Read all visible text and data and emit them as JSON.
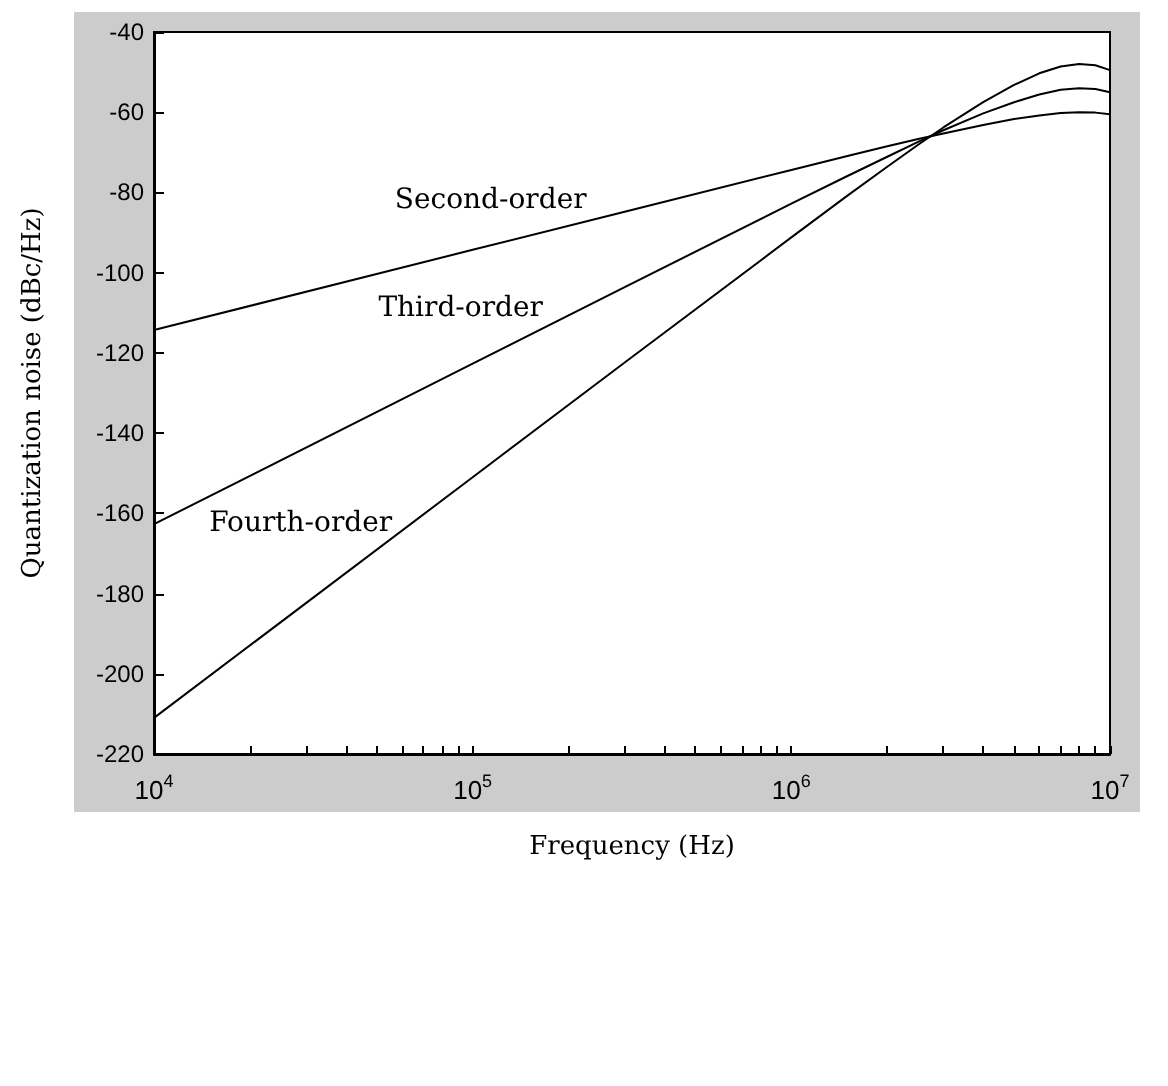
{
  "chart_data": {
    "type": "line",
    "xlabel": "Frequency (Hz)",
    "ylabel": "Quantization noise (dBc/Hz)",
    "log": "x",
    "xlim": [
      10000,
      10000000
    ],
    "ylim": [
      -220,
      -40
    ],
    "xticks": [
      {
        "value": 10000,
        "label": "10$^{4}$"
      },
      {
        "value": 20000,
        "label": null
      },
      {
        "value": 30000,
        "label": null
      },
      {
        "value": 40000,
        "label": null
      },
      {
        "value": 50000,
        "label": null
      },
      {
        "value": 60000,
        "label": null
      },
      {
        "value": 70000,
        "label": null
      },
      {
        "value": 80000,
        "label": null
      },
      {
        "value": 90000,
        "label": null
      },
      {
        "value": 100000,
        "label": "10$^{5}$"
      },
      {
        "value": 200000,
        "label": null
      },
      {
        "value": 300000,
        "label": null
      },
      {
        "value": 400000,
        "label": null
      },
      {
        "value": 500000,
        "label": null
      },
      {
        "value": 600000,
        "label": null
      },
      {
        "value": 700000,
        "label": null
      },
      {
        "value": 800000,
        "label": null
      },
      {
        "value": 900000,
        "label": null
      },
      {
        "value": 1000000,
        "label": "10$^{6}$"
      },
      {
        "value": 2000000,
        "label": null
      },
      {
        "value": 3000000,
        "label": null
      },
      {
        "value": 4000000,
        "label": null
      },
      {
        "value": 5000000,
        "label": null
      },
      {
        "value": 6000000,
        "label": null
      },
      {
        "value": 7000000,
        "label": null
      },
      {
        "value": 8000000,
        "label": null
      },
      {
        "value": 9000000,
        "label": null
      },
      {
        "value": 10000000,
        "label": "10$^{7}$"
      }
    ],
    "yticks": [
      -220,
      -200,
      -180,
      -160,
      -140,
      -120,
      -100,
      -80,
      -60,
      -40
    ],
    "grid": false,
    "legend": false,
    "marker": "none",
    "line_style": "solid",
    "x": [
      10000,
      100000,
      300000,
      1000000,
      1500000,
      2000000,
      2500000,
      3000000,
      4000000,
      5000000,
      6000000,
      7000000,
      8000000,
      9000000,
      10000000
    ],
    "series": [
      {
        "name": "Second-order",
        "color": "#000000",
        "values": [
          -114.3,
          -94.3,
          -84.8,
          -74.4,
          -70.9,
          -68.5,
          -66.7,
          -65.3,
          -63.2,
          -61.7,
          -60.8,
          -60.2,
          -60.0,
          -60.1,
          -60.5
        ]
      },
      {
        "name": "Third-order",
        "color": "#000000",
        "values": [
          -162.7,
          -122.7,
          -103.6,
          -82.8,
          -75.9,
          -71.1,
          -67.4,
          -64.5,
          -60.3,
          -57.5,
          -55.6,
          -54.4,
          -54.0,
          -54.2,
          -55.0
        ]
      },
      {
        "name": "Fourth-order",
        "color": "#000000",
        "values": [
          -211.0,
          -151.0,
          -122.4,
          -91.2,
          -80.8,
          -73.6,
          -68.1,
          -63.8,
          -57.5,
          -53.2,
          -50.3,
          -48.6,
          -48.0,
          -48.3,
          -49.5
        ]
      }
    ]
  }
}
